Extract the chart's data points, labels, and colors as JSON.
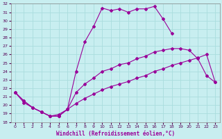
{
  "xlabel": "Windchill (Refroidissement éolien,°C)",
  "xlim": [
    -0.5,
    23.5
  ],
  "ylim": [
    18,
    32
  ],
  "xticks": [
    0,
    1,
    2,
    3,
    4,
    5,
    6,
    7,
    8,
    9,
    10,
    11,
    12,
    13,
    14,
    15,
    16,
    17,
    18,
    19,
    20,
    21,
    22,
    23
  ],
  "yticks": [
    18,
    19,
    20,
    21,
    22,
    23,
    24,
    25,
    26,
    27,
    28,
    29,
    30,
    31,
    32
  ],
  "bg_color": "#c8eef0",
  "line_color": "#990099",
  "grid_color": "#aadddd",
  "curve1_x": [
    0,
    1,
    2,
    3,
    4,
    5,
    6,
    7,
    8,
    9,
    10,
    11,
    12,
    13,
    14,
    15,
    16,
    17,
    18
  ],
  "curve1_y": [
    21.5,
    20.5,
    19.7,
    19.2,
    18.7,
    18.7,
    19.5,
    24.0,
    27.5,
    29.3,
    31.5,
    31.2,
    31.4,
    31.0,
    31.4,
    31.4,
    31.7,
    30.2,
    28.5
  ],
  "curve2_x": [
    0,
    1,
    2,
    3,
    4,
    5,
    6,
    7,
    8,
    9,
    10,
    11,
    12,
    13,
    14,
    15,
    16,
    17,
    18,
    19,
    20,
    21,
    22,
    23
  ],
  "curve2_y": [
    21.5,
    20.5,
    19.7,
    19.2,
    18.7,
    18.7,
    19.5,
    21.5,
    22.5,
    23.2,
    24.0,
    24.3,
    24.8,
    25.0,
    25.5,
    25.8,
    26.3,
    26.5,
    26.7,
    26.7,
    26.5,
    25.5,
    23.5,
    22.7
  ],
  "curve3_x": [
    0,
    1,
    2,
    3,
    4,
    5,
    6,
    7,
    8,
    9,
    10,
    11,
    12,
    13,
    14,
    15,
    16,
    17,
    18,
    19,
    20,
    21,
    22,
    23
  ],
  "curve3_y": [
    21.5,
    20.3,
    19.7,
    19.2,
    18.7,
    18.9,
    19.5,
    20.2,
    20.8,
    21.3,
    21.8,
    22.2,
    22.5,
    22.8,
    23.2,
    23.5,
    24.0,
    24.3,
    24.7,
    25.0,
    25.3,
    25.6,
    26.0,
    22.7
  ]
}
